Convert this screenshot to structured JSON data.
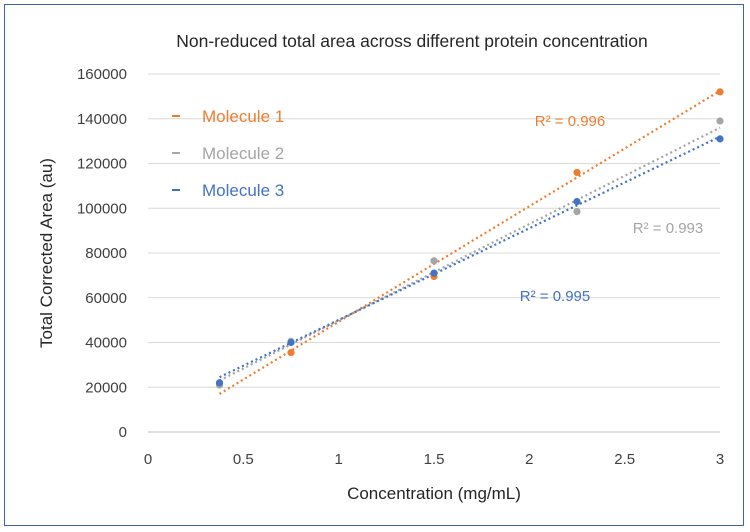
{
  "chart_data": {
    "type": "scatter",
    "title": "Non-reduced total area across different protein concentration",
    "xlabel": "Concentration (mg/mL)",
    "ylabel": "Total Corrected Area (au)",
    "xlim": [
      0,
      3
    ],
    "ylim": [
      0,
      160000
    ],
    "x_ticks": [
      "0",
      "0.5",
      "1",
      "1.5",
      "2",
      "2.5",
      "3"
    ],
    "y_ticks": [
      "0",
      "20000",
      "40000",
      "60000",
      "80000",
      "100000",
      "120000",
      "140000",
      "160000"
    ],
    "grid": "horizontal",
    "legend_position": "top-left",
    "series": [
      {
        "name": "Molecule 1",
        "color": "#ed7d31",
        "x": [
          0.375,
          0.75,
          1.5,
          2.25,
          3.0
        ],
        "y": [
          21500,
          35500,
          69500,
          116000,
          152000
        ],
        "trendline": [
          [
            0.375,
            17000
          ],
          [
            3.0,
            152500
          ]
        ],
        "r2_label": "R² = 0.996"
      },
      {
        "name": "Molecule 2",
        "color": "#a5a5a5",
        "x": [
          0.375,
          0.75,
          1.5,
          2.25,
          3.0
        ],
        "y": [
          21000,
          40500,
          76500,
          98500,
          139000
        ],
        "trendline": [
          [
            0.375,
            23000
          ],
          [
            3.0,
            136000
          ]
        ],
        "r2_label": "R² = 0.993"
      },
      {
        "name": "Molecule 3",
        "color": "#4472c4",
        "x": [
          0.375,
          0.75,
          1.5,
          2.25,
          3.0
        ],
        "y": [
          22000,
          40000,
          71000,
          103000,
          131000
        ],
        "trendline": [
          [
            0.375,
            24500
          ],
          [
            3.0,
            132000
          ]
        ],
        "r2_label": "R² = 0.995"
      }
    ]
  }
}
